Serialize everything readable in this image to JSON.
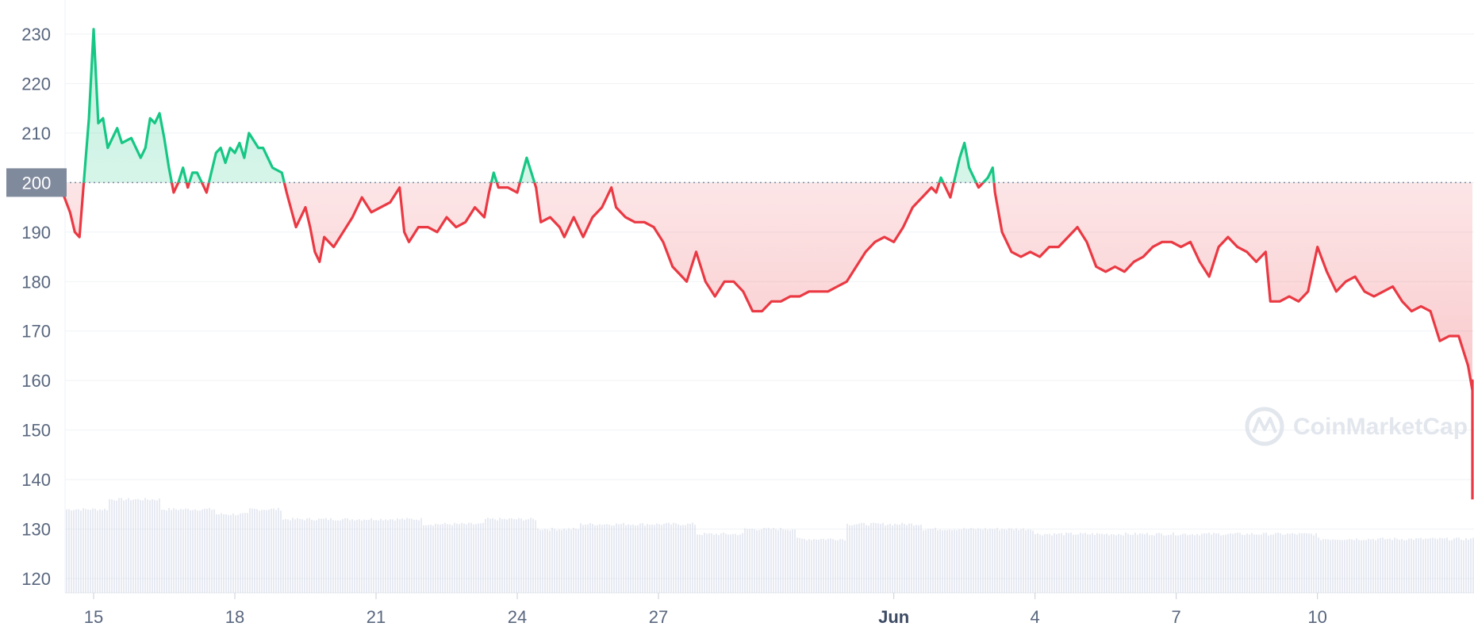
{
  "chart_data": {
    "type": "line",
    "ylim": [
      118,
      238
    ],
    "yticks": [
      120,
      130,
      140,
      150,
      160,
      170,
      180,
      190,
      200,
      210,
      220,
      230
    ],
    "xrange_days": [
      14.3,
      44.5
    ],
    "xticks": [
      {
        "day": 15,
        "label": "15",
        "bold": false
      },
      {
        "day": 18,
        "label": "18",
        "bold": false
      },
      {
        "day": 21,
        "label": "21",
        "bold": false
      },
      {
        "day": 24,
        "label": "24",
        "bold": false
      },
      {
        "day": 27,
        "label": "27",
        "bold": false
      },
      {
        "day": 32,
        "label": "Jun",
        "bold": true
      },
      {
        "day": 35,
        "label": "4",
        "bold": false
      },
      {
        "day": 38,
        "label": "7",
        "bold": false
      },
      {
        "day": 41,
        "label": "10",
        "bold": false
      }
    ],
    "baseline": {
      "value": 200,
      "label": "200"
    },
    "colors": {
      "above": "#16c784",
      "below": "#ea3943",
      "volume": "#cfd6e4",
      "baseline_box": "#808a9d",
      "grid": "#eff2f5"
    },
    "grid": true,
    "legend": "none",
    "watermark": "CoinMarketCap",
    "series": [
      {
        "values": [
          [
            14.3,
            199
          ],
          [
            14.5,
            194
          ],
          [
            14.6,
            190
          ],
          [
            14.7,
            189
          ],
          [
            14.8,
            201
          ],
          [
            14.9,
            213
          ],
          [
            15.0,
            231
          ],
          [
            15.1,
            212
          ],
          [
            15.2,
            213
          ],
          [
            15.3,
            207
          ],
          [
            15.5,
            211
          ],
          [
            15.6,
            208
          ],
          [
            15.8,
            209
          ],
          [
            16.0,
            205
          ],
          [
            16.1,
            207
          ],
          [
            16.2,
            213
          ],
          [
            16.3,
            212
          ],
          [
            16.4,
            214
          ],
          [
            16.5,
            209
          ],
          [
            16.6,
            203
          ],
          [
            16.7,
            198
          ],
          [
            16.8,
            200
          ],
          [
            16.9,
            203
          ],
          [
            17.0,
            199
          ],
          [
            17.1,
            202
          ],
          [
            17.2,
            202
          ],
          [
            17.4,
            198
          ],
          [
            17.5,
            202
          ],
          [
            17.6,
            206
          ],
          [
            17.7,
            207
          ],
          [
            17.8,
            204
          ],
          [
            17.9,
            207
          ],
          [
            18.0,
            206
          ],
          [
            18.1,
            208
          ],
          [
            18.2,
            205
          ],
          [
            18.3,
            210
          ],
          [
            18.5,
            207
          ],
          [
            18.6,
            207
          ],
          [
            18.8,
            203
          ],
          [
            19.0,
            202
          ],
          [
            19.1,
            198
          ],
          [
            19.3,
            191
          ],
          [
            19.4,
            193
          ],
          [
            19.5,
            195
          ],
          [
            19.6,
            191
          ],
          [
            19.7,
            186
          ],
          [
            19.8,
            184
          ],
          [
            19.9,
            189
          ],
          [
            20.1,
            187
          ],
          [
            20.3,
            190
          ],
          [
            20.5,
            193
          ],
          [
            20.7,
            197
          ],
          [
            20.9,
            194
          ],
          [
            21.1,
            195
          ],
          [
            21.3,
            196
          ],
          [
            21.5,
            199
          ],
          [
            21.6,
            190
          ],
          [
            21.7,
            188
          ],
          [
            21.9,
            191
          ],
          [
            22.1,
            191
          ],
          [
            22.3,
            190
          ],
          [
            22.5,
            193
          ],
          [
            22.7,
            191
          ],
          [
            22.9,
            192
          ],
          [
            23.1,
            195
          ],
          [
            23.3,
            193
          ],
          [
            23.4,
            198
          ],
          [
            23.5,
            202
          ],
          [
            23.6,
            199
          ],
          [
            23.8,
            199
          ],
          [
            24.0,
            198
          ],
          [
            24.2,
            205
          ],
          [
            24.4,
            199
          ],
          [
            24.5,
            192
          ],
          [
            24.7,
            193
          ],
          [
            24.9,
            191
          ],
          [
            25.0,
            189
          ],
          [
            25.2,
            193
          ],
          [
            25.4,
            189
          ],
          [
            25.6,
            193
          ],
          [
            25.8,
            195
          ],
          [
            26.0,
            199
          ],
          [
            26.1,
            195
          ],
          [
            26.3,
            193
          ],
          [
            26.5,
            192
          ],
          [
            26.7,
            192
          ],
          [
            26.9,
            191
          ],
          [
            27.1,
            188
          ],
          [
            27.3,
            183
          ],
          [
            27.5,
            181
          ],
          [
            27.6,
            180
          ],
          [
            27.8,
            186
          ],
          [
            28.0,
            180
          ],
          [
            28.2,
            177
          ],
          [
            28.4,
            180
          ],
          [
            28.6,
            180
          ],
          [
            28.8,
            178
          ],
          [
            29.0,
            174
          ],
          [
            29.2,
            174
          ],
          [
            29.4,
            176
          ],
          [
            29.6,
            176
          ],
          [
            29.8,
            177
          ],
          [
            30.0,
            177
          ],
          [
            30.2,
            178
          ],
          [
            30.4,
            178
          ],
          [
            30.6,
            178
          ],
          [
            30.8,
            179
          ],
          [
            31.0,
            180
          ],
          [
            31.2,
            183
          ],
          [
            31.4,
            186
          ],
          [
            31.6,
            188
          ],
          [
            31.8,
            189
          ],
          [
            32.0,
            188
          ],
          [
            32.2,
            191
          ],
          [
            32.4,
            195
          ],
          [
            32.6,
            197
          ],
          [
            32.8,
            199
          ],
          [
            32.9,
            198
          ],
          [
            33.0,
            201
          ],
          [
            33.2,
            197
          ],
          [
            33.4,
            205
          ],
          [
            33.5,
            208
          ],
          [
            33.6,
            203
          ],
          [
            33.8,
            199
          ],
          [
            34.0,
            201
          ],
          [
            34.1,
            203
          ],
          [
            34.15,
            198
          ],
          [
            34.3,
            190
          ],
          [
            34.5,
            186
          ],
          [
            34.7,
            185
          ],
          [
            34.9,
            186
          ],
          [
            35.1,
            185
          ],
          [
            35.3,
            187
          ],
          [
            35.5,
            187
          ],
          [
            35.7,
            189
          ],
          [
            35.9,
            191
          ],
          [
            36.1,
            188
          ],
          [
            36.3,
            183
          ],
          [
            36.5,
            182
          ],
          [
            36.7,
            183
          ],
          [
            36.9,
            182
          ],
          [
            37.1,
            184
          ],
          [
            37.3,
            185
          ],
          [
            37.5,
            187
          ],
          [
            37.7,
            188
          ],
          [
            37.9,
            188
          ],
          [
            38.1,
            187
          ],
          [
            38.3,
            188
          ],
          [
            38.5,
            184
          ],
          [
            38.7,
            181
          ],
          [
            38.9,
            187
          ],
          [
            39.1,
            189
          ],
          [
            39.3,
            187
          ],
          [
            39.5,
            186
          ],
          [
            39.7,
            184
          ],
          [
            39.9,
            186
          ],
          [
            40.0,
            176
          ],
          [
            40.2,
            176
          ],
          [
            40.4,
            177
          ],
          [
            40.6,
            176
          ],
          [
            40.8,
            178
          ],
          [
            41.0,
            187
          ],
          [
            41.2,
            182
          ],
          [
            41.4,
            178
          ],
          [
            41.6,
            180
          ],
          [
            41.8,
            181
          ],
          [
            42.0,
            178
          ],
          [
            42.2,
            177
          ],
          [
            42.4,
            178
          ],
          [
            42.6,
            179
          ],
          [
            42.8,
            176
          ],
          [
            43.0,
            174
          ],
          [
            43.2,
            175
          ],
          [
            43.4,
            174
          ],
          [
            43.6,
            168
          ],
          [
            43.8,
            169
          ],
          [
            44.0,
            169
          ],
          [
            44.2,
            163
          ],
          [
            44.4,
            158
          ],
          [
            44.5,
            160
          ],
          [
            44.6,
            154
          ],
          [
            44.7,
            152
          ],
          [
            44.8,
            153
          ],
          [
            44.9,
            151
          ],
          [
            45.0,
            155
          ],
          [
            45.2,
            153
          ],
          [
            45.4,
            151
          ],
          [
            45.5,
            145
          ],
          [
            45.6,
            141
          ],
          [
            45.7,
            142
          ],
          [
            45.8,
            137
          ],
          [
            45.9,
            136
          ]
        ]
      }
    ]
  }
}
